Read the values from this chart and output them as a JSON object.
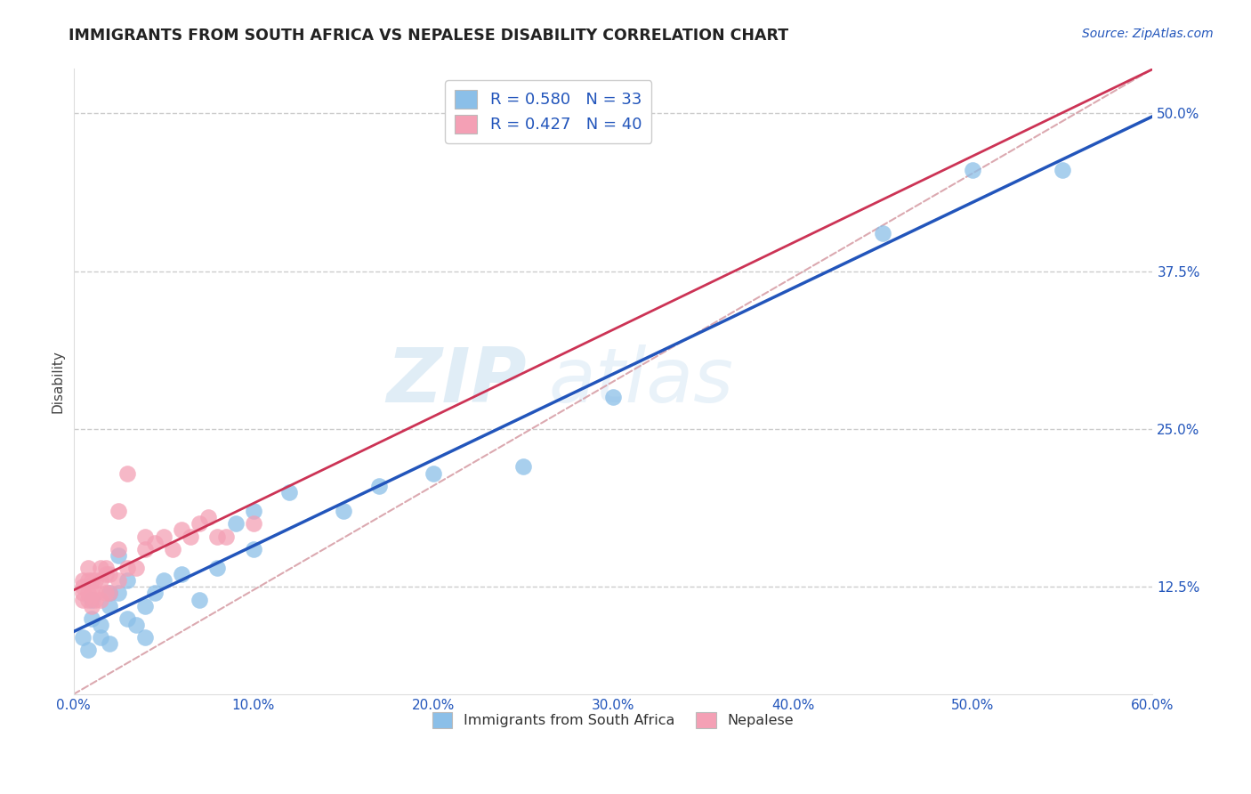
{
  "title": "IMMIGRANTS FROM SOUTH AFRICA VS NEPALESE DISABILITY CORRELATION CHART",
  "source": "Source: ZipAtlas.com",
  "ylabel": "Disability",
  "xlim": [
    0.0,
    0.6
  ],
  "ylim": [
    0.04,
    0.535
  ],
  "xticks": [
    0.0,
    0.1,
    0.2,
    0.3,
    0.4,
    0.5,
    0.6
  ],
  "xticklabels": [
    "0.0%",
    "10.0%",
    "20.0%",
    "30.0%",
    "40.0%",
    "50.0%",
    "60.0%"
  ],
  "yticks": [
    0.125,
    0.25,
    0.375,
    0.5
  ],
  "yticklabels": [
    "12.5%",
    "25.0%",
    "37.5%",
    "50.0%"
  ],
  "grid_color": "#cccccc",
  "background_color": "#ffffff",
  "blue_R": 0.58,
  "blue_N": 33,
  "pink_R": 0.427,
  "pink_N": 40,
  "blue_color": "#8bbfe8",
  "pink_color": "#f4a0b5",
  "blue_line_color": "#2255bb",
  "pink_line_color": "#cc3355",
  "diag_line_color": "#d8a0a8",
  "tick_color": "#2255bb",
  "legend_label_blue": "Immigrants from South Africa",
  "legend_label_pink": "Nepalese",
  "watermark_zip": "ZIP",
  "watermark_atlas": "atlas",
  "blue_x": [
    0.005,
    0.008,
    0.01,
    0.01,
    0.015,
    0.015,
    0.02,
    0.02,
    0.02,
    0.025,
    0.025,
    0.03,
    0.03,
    0.035,
    0.04,
    0.04,
    0.045,
    0.05,
    0.06,
    0.07,
    0.08,
    0.09,
    0.1,
    0.1,
    0.12,
    0.15,
    0.17,
    0.2,
    0.25,
    0.3,
    0.45,
    0.5,
    0.55
  ],
  "blue_y": [
    0.085,
    0.075,
    0.1,
    0.115,
    0.085,
    0.095,
    0.12,
    0.11,
    0.08,
    0.15,
    0.12,
    0.1,
    0.13,
    0.095,
    0.11,
    0.085,
    0.12,
    0.13,
    0.135,
    0.115,
    0.14,
    0.175,
    0.185,
    0.155,
    0.2,
    0.185,
    0.205,
    0.215,
    0.22,
    0.275,
    0.405,
    0.455,
    0.455
  ],
  "pink_x": [
    0.005,
    0.005,
    0.005,
    0.005,
    0.008,
    0.008,
    0.008,
    0.008,
    0.01,
    0.01,
    0.01,
    0.012,
    0.012,
    0.012,
    0.015,
    0.015,
    0.015,
    0.018,
    0.018,
    0.018,
    0.02,
    0.02,
    0.025,
    0.025,
    0.025,
    0.03,
    0.03,
    0.035,
    0.04,
    0.04,
    0.045,
    0.05,
    0.055,
    0.06,
    0.065,
    0.07,
    0.075,
    0.08,
    0.085,
    0.1
  ],
  "pink_y": [
    0.115,
    0.12,
    0.125,
    0.13,
    0.115,
    0.12,
    0.13,
    0.14,
    0.11,
    0.12,
    0.13,
    0.115,
    0.12,
    0.13,
    0.115,
    0.13,
    0.14,
    0.12,
    0.135,
    0.14,
    0.12,
    0.135,
    0.13,
    0.155,
    0.185,
    0.14,
    0.215,
    0.14,
    0.155,
    0.165,
    0.16,
    0.165,
    0.155,
    0.17,
    0.165,
    0.175,
    0.18,
    0.165,
    0.165,
    0.175
  ]
}
